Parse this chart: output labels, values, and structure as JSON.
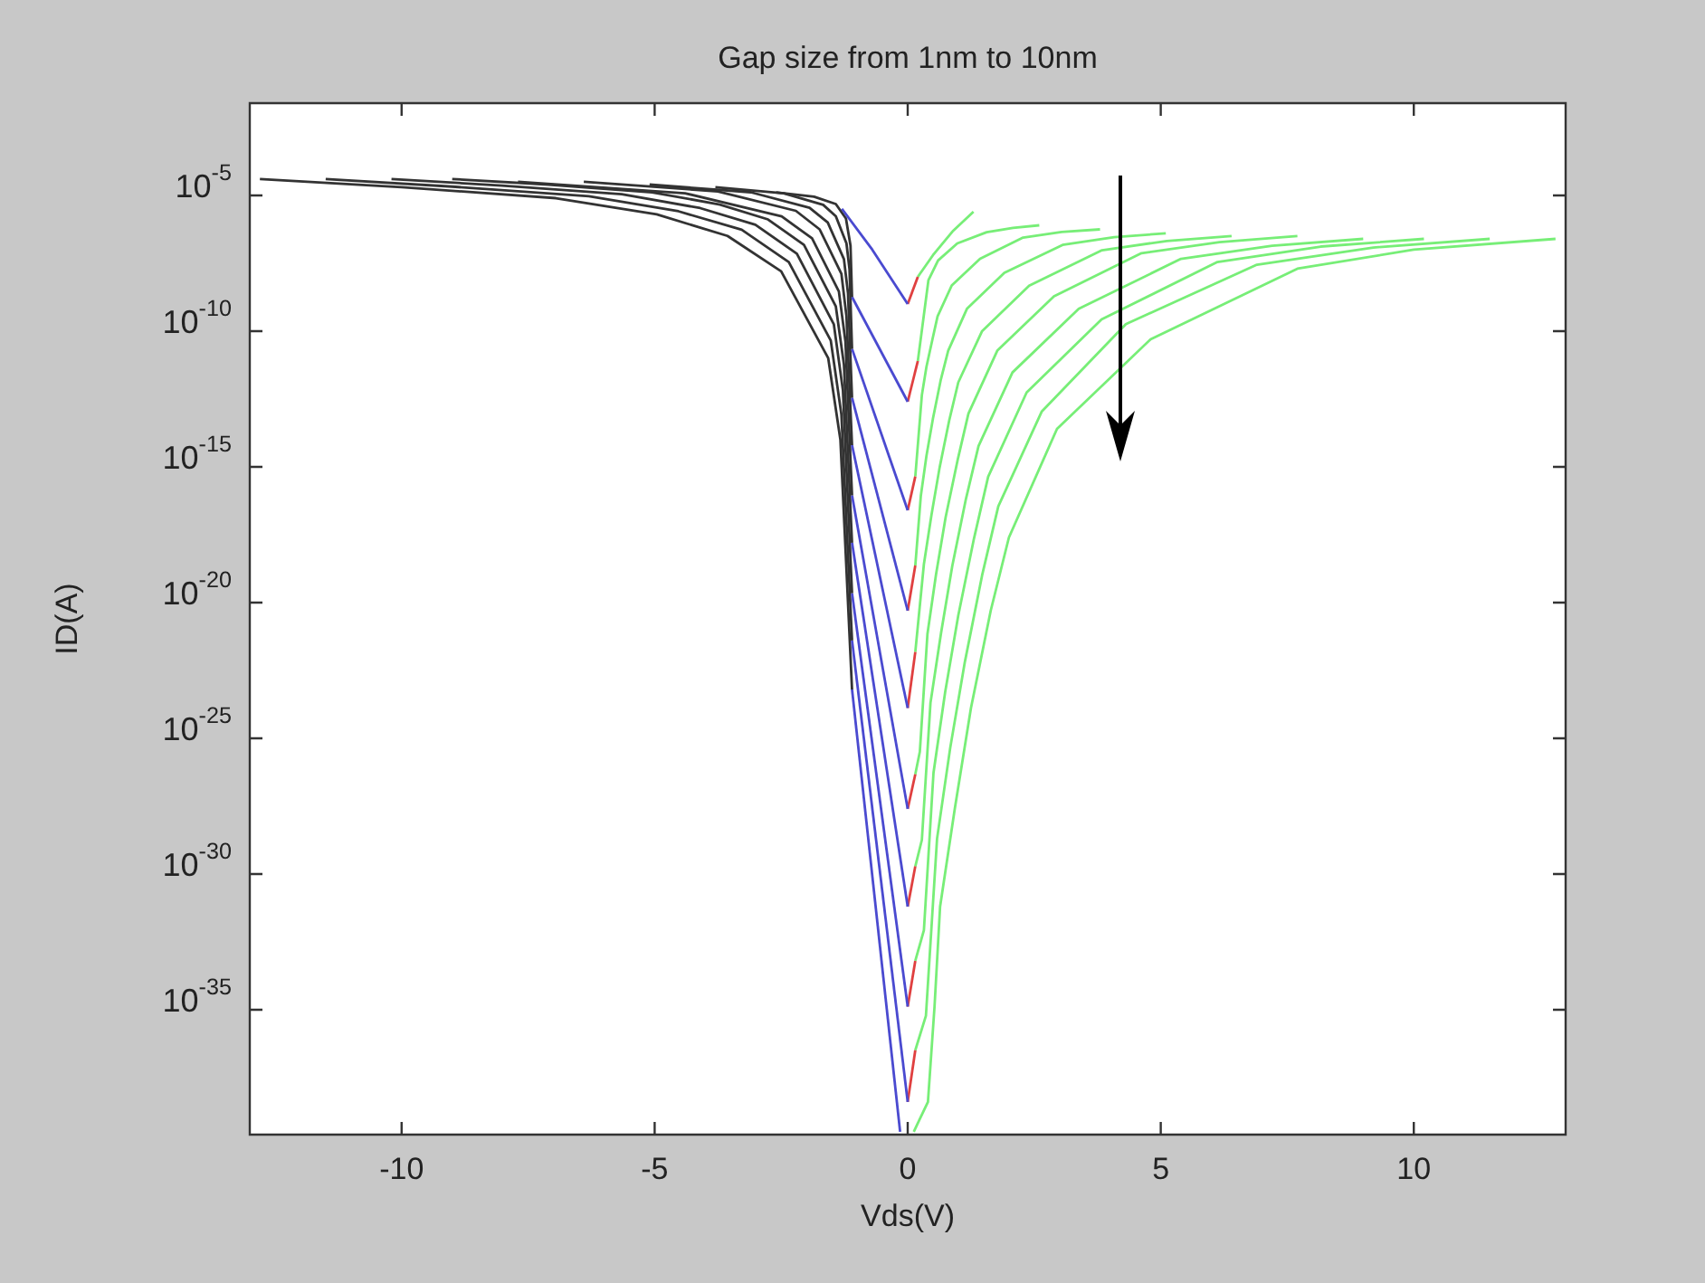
{
  "chart_data": {
    "type": "line",
    "title": "Gap size from 1nm to 10nm",
    "xlabel": "Vds(V)",
    "ylabel": "ID(A)",
    "log": "y",
    "xlim": [
      -13,
      13
    ],
    "xticks": [
      -10,
      -5,
      0,
      5,
      10
    ],
    "ylim": [
      2.5e-40,
      0.025
    ],
    "yticks": [
      {
        "value": 1e-35,
        "label": "10$^{-35}$"
      },
      {
        "value": 1e-30,
        "label": "10$^{-30}$"
      },
      {
        "value": 1e-25,
        "label": "10$^{-25}$"
      },
      {
        "value": 1e-20,
        "label": "10$^{-20}$"
      },
      {
        "value": 1e-15,
        "label": "10$^{-15}$"
      },
      {
        "value": 1e-10,
        "label": "10$^{-10}$"
      },
      {
        "value": 1e-05,
        "label": "10$^{-5}$"
      }
    ],
    "series": [
      {
        "color": "#4a4ad0",
        "x": [
          -1.3,
          -0.7,
          0
        ],
        "values": [
          3.2e-06,
          1e-07,
          1e-09
        ]
      },
      {
        "color": "#e04040",
        "x": [
          0,
          0.2
        ],
        "values": [
          1e-09,
          1e-08
        ]
      },
      {
        "color": "#77ee77",
        "x": [
          0.2,
          0.5,
          0.9,
          1.3
        ],
        "values": [
          1e-08,
          6.3e-08,
          5e-07,
          2.5e-06
        ]
      },
      {
        "color": "#333333",
        "x": [
          -2.6,
          -1.85,
          -1.42,
          -1.22,
          -1.13,
          -1.1
        ],
        "values": [
          1.3e-05,
          9e-06,
          4.8e-06,
          1.4e-06,
          1.4e-07,
          1.8e-09
        ]
      },
      {
        "color": "#4a4ad0",
        "x": [
          -1.1,
          0
        ],
        "values": [
          1.8e-09,
          2.5e-13
        ]
      },
      {
        "color": "#e04040",
        "x": [
          0,
          0.2
        ],
        "values": [
          2.5e-13,
          7.9e-12
        ]
      },
      {
        "color": "#77ee77",
        "x": [
          0.2,
          0.41,
          0.6,
          0.98,
          1.56,
          2.08,
          2.6
        ],
        "values": [
          7.9e-12,
          7.6e-09,
          4e-08,
          1.7e-07,
          4.4e-07,
          6.3e-07,
          7.9e-07
        ]
      },
      {
        "color": "#333333",
        "x": [
          -3.8,
          -2.45,
          -1.67,
          -1.42,
          -1.21,
          -1.15,
          -1.1
        ],
        "values": [
          2e-05,
          1.2e-05,
          4.5e-06,
          1.7e-06,
          1.7e-07,
          1.9e-08,
          2.2e-11
        ]
      },
      {
        "color": "#4a4ad0",
        "x": [
          -1.1,
          0
        ],
        "values": [
          2.2e-11,
          2.5e-17
        ]
      },
      {
        "color": "#e04040",
        "x": [
          0,
          0.15
        ],
        "values": [
          2.5e-17,
          4.4e-16
        ]
      },
      {
        "color": "#77ee77",
        "x": [
          0.15,
          0.28,
          0.37,
          0.49,
          0.59,
          0.87,
          1.43,
          2.28,
          3.04,
          3.8
        ],
        "values": [
          4.4e-16,
          4.4e-13,
          4.8e-12,
          5.1e-11,
          3.5e-10,
          4.8e-09,
          4.6e-08,
          2.8e-07,
          4.5e-07,
          5.6e-07
        ]
      },
      {
        "color": "#333333",
        "x": [
          -5.1,
          -3.1,
          -1.94,
          -1.58,
          -1.26,
          -1.18,
          -1.1
        ],
        "values": [
          2.5e-05,
          1.3e-05,
          3.5e-06,
          1e-06,
          4.5e-08,
          2.5e-09,
          3.5e-13
        ]
      },
      {
        "color": "#4a4ad0",
        "x": [
          -1.1,
          0
        ],
        "values": [
          3.5e-13,
          5e-21
        ]
      },
      {
        "color": "#e04040",
        "x": [
          0,
          0.15
        ],
        "values": [
          5e-21,
          2.3e-19
        ]
      },
      {
        "color": "#77ee77",
        "x": [
          0.15,
          0.26,
          0.37,
          0.5,
          0.65,
          0.8,
          1.17,
          1.91,
          3.06,
          4.08,
          5.1
        ],
        "values": [
          2.3e-19,
          8.7e-17,
          2.5e-15,
          6.2e-14,
          1.5e-12,
          1.9e-11,
          6.6e-10,
          1.4e-08,
          1.5e-07,
          2.9e-07,
          4e-07
        ]
      },
      {
        "color": "#333333",
        "x": [
          -6.4,
          -3.75,
          -2.21,
          -1.74,
          -1.31,
          -1.21,
          -1.1
        ],
        "values": [
          3.2e-05,
          1.4e-05,
          2.7e-06,
          5.6e-07,
          1.3e-08,
          3.5e-10,
          6.3e-15
        ]
      },
      {
        "color": "#4a4ad0",
        "x": [
          -1.1,
          0
        ],
        "values": [
          6.3e-15,
          1.3e-24
        ]
      },
      {
        "color": "#e04040",
        "x": [
          0,
          0.15
        ],
        "values": [
          1.3e-24,
          1.5e-22
        ]
      },
      {
        "color": "#77ee77",
        "x": [
          0.15,
          0.32,
          0.47,
          0.63,
          0.82,
          1.0,
          1.47,
          2.4,
          3.84,
          5.12,
          6.4
        ],
        "values": [
          1.5e-22,
          2.6e-19,
          1.7e-17,
          9.3e-16,
          5.1e-14,
          1.3e-12,
          1e-10,
          4.7e-09,
          9.5e-08,
          2.1e-07,
          3.2e-07
        ]
      },
      {
        "color": "#333333",
        "x": [
          -7.7,
          -4.4,
          -2.49,
          -1.89,
          -1.36,
          -1.23,
          -1.1
        ],
        "values": [
          3.2e-05,
          1.2e-05,
          1.7e-06,
          2.6e-07,
          2.9e-09,
          4.1e-11,
          8.9e-17
        ]
      },
      {
        "color": "#4a4ad0",
        "x": [
          -1.1,
          0
        ],
        "values": [
          8.9e-17,
          2.5e-28
        ]
      },
      {
        "color": "#e04040",
        "x": [
          0,
          0.15
        ],
        "values": [
          2.5e-28,
          4.7e-27
        ]
      },
      {
        "color": "#77ee77",
        "x": [
          0.15,
          0.24,
          0.39,
          0.56,
          0.75,
          0.99,
          1.2,
          1.77,
          2.89,
          4.62,
          6.16,
          7.7
        ],
        "values": [
          4.7e-27,
          3.2e-26,
          6.9e-22,
          1.1e-19,
          1.4e-17,
          1.9e-15,
          9.1e-14,
          1.9e-11,
          1.9e-09,
          7.4e-08,
          1.9e-07,
          3.2e-07
        ]
      },
      {
        "color": "#333333",
        "x": [
          -9,
          -7.1,
          -5.05,
          -3.71,
          -2.76,
          -2.05,
          -1.42,
          -1.26,
          -1.1
        ],
        "values": [
          4e-05,
          2.5e-05,
          1.3e-05,
          4.6e-06,
          1.3e-06,
          1.5e-07,
          8.1e-10,
          5.9e-12,
          1.6e-18
        ]
      },
      {
        "color": "#4a4ad0",
        "x": [
          -1.1,
          0
        ],
        "values": [
          1.6e-18,
          6.3e-32
        ]
      },
      {
        "color": "#e04040",
        "x": [
          0,
          0.15
        ],
        "values": [
          6.3e-32,
          1.9e-30
        ]
      },
      {
        "color": "#77ee77",
        "x": [
          0.15,
          0.28,
          0.45,
          0.66,
          0.88,
          1.15,
          1.4,
          2.07,
          3.38,
          5.4,
          7.2,
          9
        ],
        "values": [
          1.9e-30,
          1.8e-29,
          2e-24,
          7.8e-22,
          2.2e-19,
          6.5e-17,
          5.9e-15,
          3e-12,
          6.6e-10,
          4.6e-08,
          1.4e-07,
          2.5e-07
        ]
      },
      {
        "color": "#333333",
        "x": [
          -10.2,
          -8.02,
          -5.65,
          -4.1,
          -3.01,
          -2.19,
          -1.46,
          -1.28,
          -1.1
        ],
        "values": [
          4e-05,
          2.3e-05,
          1.1e-05,
          3.4e-06,
          8.3e-07,
          7.1e-08,
          1.8e-10,
          6.6e-13,
          2.2e-20
        ]
      },
      {
        "color": "#4a4ad0",
        "x": [
          -1.1,
          0
        ],
        "values": [
          2.2e-20,
          1.3e-35
        ]
      },
      {
        "color": "#e04040",
        "x": [
          0,
          0.15
        ],
        "values": [
          1.3e-35,
          6.3e-34
        ]
      },
      {
        "color": "#77ee77",
        "x": [
          0.15,
          0.32,
          0.51,
          0.74,
          1.0,
          1.31,
          1.59,
          2.35,
          3.83,
          6.12,
          8.16,
          10.2
        ],
        "values": [
          6.3e-34,
          8.5e-33,
          5.4e-27,
          5e-24,
          3.4e-21,
          2.3e-18,
          4.3e-16,
          5.5e-13,
          2.7e-10,
          3.5e-08,
          1.3e-07,
          2.5e-07
        ]
      },
      {
        "color": "#333333",
        "x": [
          -11.5,
          -9,
          -6.3,
          -4.53,
          -3.28,
          -2.35,
          -1.52,
          -1.31,
          -1.1
        ],
        "values": [
          4e-05,
          2.1e-05,
          9.3e-06,
          2.6e-06,
          5.4e-07,
          3.5e-08,
          4.5e-11,
          8.5e-14,
          4e-22
        ]
      },
      {
        "color": "#4a4ad0",
        "x": [
          -1.1,
          0
        ],
        "values": [
          4e-22,
          4e-39
        ]
      },
      {
        "color": "#e04040",
        "x": [
          0,
          0.15
        ],
        "values": [
          4e-39,
          3.2e-37
        ]
      },
      {
        "color": "#77ee77",
        "x": [
          0.15,
          0.36,
          0.58,
          0.84,
          1.13,
          1.47,
          1.79,
          2.65,
          4.31,
          6.9,
          9.2,
          11.5
        ],
        "values": [
          3.2e-37,
          6e-36,
          2e-29,
          4.4e-26,
          6.6e-23,
          1e-19,
          3.5e-17,
          1.1e-13,
          1.8e-10,
          2.8e-08,
          1.2e-07,
          2.5e-07
        ]
      },
      {
        "color": "#333333",
        "x": [
          -12.8,
          -10,
          -6.95,
          -4.96,
          -3.56,
          -2.5,
          -1.57,
          -1.33,
          -1.1
        ],
        "values": [
          4e-05,
          2e-05,
          7.9e-06,
          2e-06,
          3.2e-07,
          1.6e-08,
          1e-11,
          1e-14,
          6.3e-24
        ]
      },
      {
        "color": "#4a4ad0",
        "x": [
          -1.1,
          -0.15
        ],
        "values": [
          6.3e-24,
          3.2e-40
        ]
      },
      {
        "color": "#77ee77",
        "x": [
          0.12,
          0.4,
          0.53,
          0.64,
          0.93,
          1.25,
          1.64,
          2.0,
          2.95,
          4.8,
          7.7,
          10,
          12.8
        ],
        "values": [
          3.2e-40,
          4e-39,
          1.3e-35,
          6.3e-32,
          2.5e-28,
          1.3e-24,
          5e-21,
          2.5e-18,
          2.5e-14,
          5e-11,
          2e-08,
          1e-07,
          2.5e-07
        ]
      }
    ]
  }
}
